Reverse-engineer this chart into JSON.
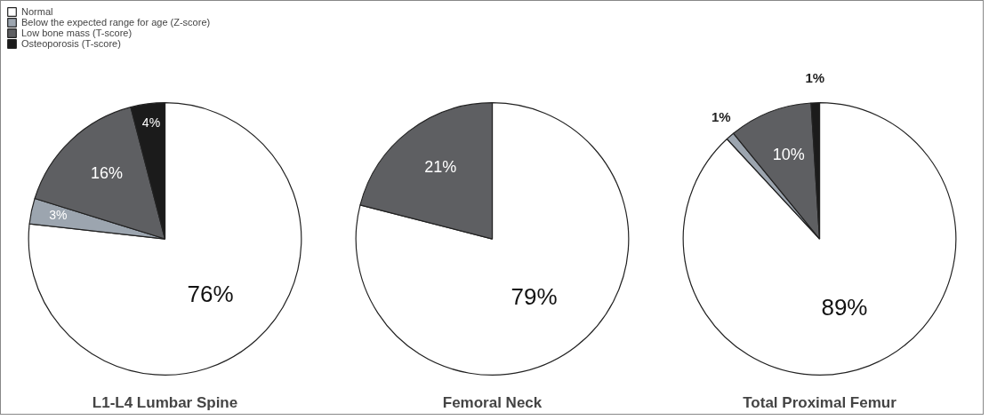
{
  "chart_data": [
    {
      "type": "pie",
      "title": "L1-L4 Lumbar Spine",
      "categories": [
        "Normal",
        "Below the expected range for age (Z-score)",
        "Low bone mass (T-score)",
        "Osteoporosis (T-score)"
      ],
      "values": [
        76,
        3,
        16,
        4
      ],
      "colors": [
        "#ffffff",
        "#9ca5af",
        "#5e5f62",
        "#1b1b1b"
      ],
      "value_labels": [
        "76%",
        "3%",
        "16%",
        "4%"
      ],
      "legend": "top left"
    },
    {
      "type": "pie",
      "title": "Femoral Neck",
      "categories": [
        null,
        null
      ],
      "values": [
        79,
        21
      ],
      "colors": [
        "#ffffff",
        "#5e5f62"
      ],
      "value_labels": [
        "79%",
        "21%"
      ]
    },
    {
      "type": "pie",
      "title": "Total Proximal Femur",
      "categories": [
        null,
        null,
        null,
        null
      ],
      "values": [
        89,
        1,
        10,
        1
      ],
      "colors": [
        "#ffffff",
        "#9ca5af",
        "#5e5f62",
        "#1b1b1b"
      ],
      "value_labels": [
        "89%",
        "1%",
        "10%",
        "1%"
      ]
    }
  ]
}
